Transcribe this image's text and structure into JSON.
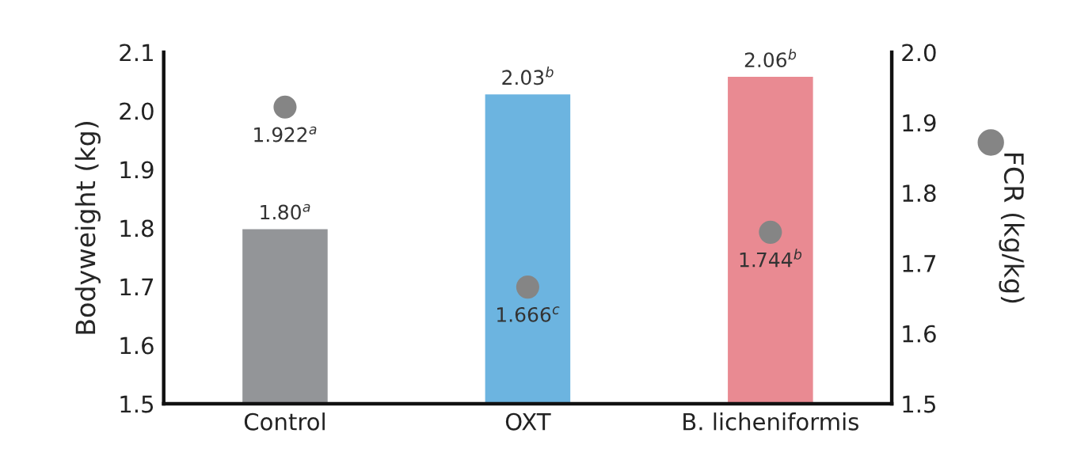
{
  "chart_data": {
    "type": "bar",
    "ylabel": "Bodyweight (kg)",
    "y2label": "FCR (kg/kg)",
    "categories": [
      "Control",
      "OXT",
      "B. licheniformis"
    ],
    "series": [
      {
        "colors": [
          "#939598",
          "#6cb4e0",
          "#e98a92"
        ],
        "values": [
          1.8,
          2.03,
          2.06
        ],
        "value_labels": [
          "1.80$^{a}$",
          "2.03$^{b}$",
          "2.06$^{b}$"
        ]
      },
      {
        "type": "scatter",
        "axis": "y2",
        "color": "#858585",
        "marker": "circle",
        "values": [
          1.922,
          1.666,
          1.744
        ],
        "value_labels": [
          "1.922$^{a}$",
          "1.666$^{c}$",
          "1.744$^{b}$"
        ]
      }
    ],
    "ylim": [
      1.5,
      2.1
    ],
    "yticks": [
      1.5,
      1.6,
      1.7,
      1.8,
      1.9,
      {
        "value": 2,
        "label": "2.0"
      },
      2.1
    ],
    "y2lim": [
      1.5,
      2.0
    ],
    "y2ticks": [
      1.5,
      1.6,
      1.7,
      1.8,
      1.9,
      {
        "value": 2,
        "label": "2.0"
      }
    ],
    "grid": false
  }
}
